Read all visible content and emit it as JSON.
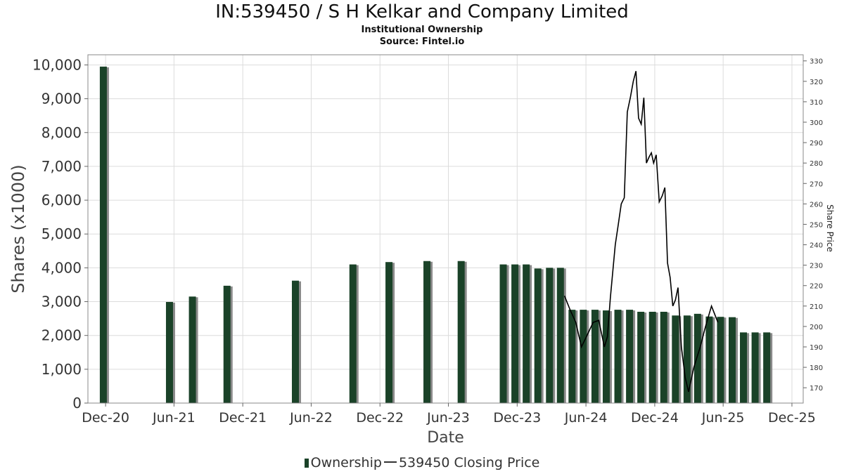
{
  "chart_data": {
    "type": "bar",
    "title": "IN:539450 / S H Kelkar and Company Limited",
    "subtitle": "Institutional Ownership",
    "source": "Source: Fintel.io",
    "xlabel": "Date",
    "ylabel": "Shares (x1000)",
    "y2label": "Share Price",
    "ylim": [
      0,
      10300
    ],
    "y2lim": [
      162.5,
      333
    ],
    "xlim": [
      "2020-10-15",
      "2025-12-31"
    ],
    "yticks": [
      0,
      1000,
      2000,
      3000,
      4000,
      5000,
      6000,
      7000,
      8000,
      9000,
      10000
    ],
    "ytick_labels": [
      "0",
      "1,000",
      "2,000",
      "3,000",
      "4,000",
      "5,000",
      "6,000",
      "7,000",
      "8,000",
      "9,000",
      "10,000"
    ],
    "y2ticks": [
      170,
      180,
      190,
      200,
      210,
      220,
      230,
      240,
      250,
      260,
      270,
      280,
      290,
      300,
      310,
      320,
      330
    ],
    "y2tick_labels": [
      "170",
      "180",
      "190",
      "200",
      "210",
      "220",
      "230",
      "240",
      "250",
      "260",
      "270",
      "280",
      "290",
      "300",
      "310",
      "320",
      "330"
    ],
    "xticks": [
      "2020-12-01",
      "2021-06-01",
      "2021-12-01",
      "2022-06-01",
      "2022-12-01",
      "2023-06-01",
      "2023-12-01",
      "2024-06-01",
      "2024-12-01",
      "2025-06-01",
      "2025-12-01"
    ],
    "xtick_labels": [
      "Dec-20",
      "Jun-21",
      "Dec-21",
      "Jun-22",
      "Dec-22",
      "Jun-23",
      "Dec-23",
      "Jun-24",
      "Dec-24",
      "Jun-25",
      "Dec-25"
    ],
    "grid": true,
    "legend_position": "bottom",
    "series": [
      {
        "name": "Ownership",
        "type": "bar",
        "color": "#1a4228",
        "x": [
          "2020-11-25",
          "2021-05-20",
          "2021-07-20",
          "2021-10-20",
          "2022-04-20",
          "2022-09-20",
          "2022-12-25",
          "2023-04-05",
          "2023-07-05",
          "2023-10-25",
          "2023-11-25",
          "2023-12-25",
          "2024-01-25",
          "2024-02-25",
          "2024-03-25",
          "2024-04-25",
          "2024-05-25",
          "2024-06-25",
          "2024-07-25",
          "2024-08-25",
          "2024-09-25",
          "2024-10-25",
          "2024-11-25",
          "2024-12-25",
          "2025-01-25",
          "2025-02-25",
          "2025-03-25",
          "2025-04-25",
          "2025-05-25",
          "2025-06-25",
          "2025-07-25",
          "2025-08-25",
          "2025-09-25"
        ],
        "values": [
          9950,
          2990,
          3150,
          3470,
          3620,
          4100,
          4170,
          4200,
          4200,
          4100,
          4100,
          4100,
          3980,
          4000,
          4000,
          2760,
          2760,
          2760,
          2740,
          2760,
          2760,
          2700,
          2700,
          2700,
          2590,
          2590,
          2640,
          2560,
          2550,
          2540,
          2090,
          2090,
          2090
        ]
      },
      {
        "name": "539450 Closing Price",
        "type": "line",
        "color": "#000000",
        "x": [
          "2024-04-05",
          "2024-04-20",
          "2024-05-05",
          "2024-05-20",
          "2024-06-05",
          "2024-06-20",
          "2024-07-05",
          "2024-07-20",
          "2024-07-28",
          "2024-08-05",
          "2024-08-13",
          "2024-08-18",
          "2024-08-26",
          "2024-09-03",
          "2024-09-11",
          "2024-09-19",
          "2024-09-27",
          "2024-10-05",
          "2024-10-12",
          "2024-10-19",
          "2024-10-26",
          "2024-11-02",
          "2024-11-09",
          "2024-11-16",
          "2024-11-22",
          "2024-11-28",
          "2024-12-05",
          "2024-12-13",
          "2024-12-21",
          "2024-12-28",
          "2025-01-04",
          "2025-01-11",
          "2025-01-18",
          "2025-01-25",
          "2025-02-01",
          "2025-02-10",
          "2025-02-20",
          "2025-03-01",
          "2025-03-15",
          "2025-04-01",
          "2025-04-15",
          "2025-05-01",
          "2025-05-18"
        ],
        "values": [
          215,
          208,
          202,
          190,
          196,
          202,
          203,
          190,
          195,
          214,
          230,
          240,
          250,
          260,
          263,
          305,
          312,
          320,
          325,
          302,
          299,
          312,
          280,
          283,
          285,
          280,
          284,
          261,
          264,
          268,
          231,
          224,
          210,
          213,
          219,
          190,
          175,
          168,
          180,
          190,
          200,
          210,
          202
        ]
      }
    ]
  }
}
